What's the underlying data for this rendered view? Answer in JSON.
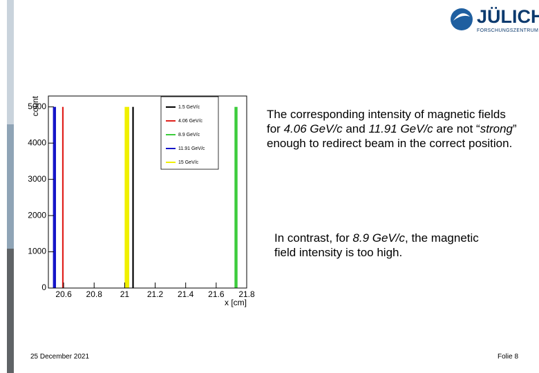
{
  "logo": {
    "name": "JÜLICH",
    "subtitle": "FORSCHUNGSZENTRUM"
  },
  "paragraphs": [
    [
      "The corresponding intensity of magnetic fields for ",
      "4.06 GeV/c",
      " and ",
      "11.91 GeV/c",
      " are not “",
      "strong",
      "” enough to redirect beam in the correct position."
    ],
    [
      "In contrast, for ",
      "8.9 GeV/c",
      ", the magnetic field intensity is too high."
    ]
  ],
  "footer": {
    "date": "25 December 2021",
    "page": "Folie 8"
  },
  "chart_data": {
    "type": "histogram",
    "y_label": "count",
    "x_label": "x [cm]",
    "xlim": [
      20.5,
      21.8
    ],
    "xticks": [
      20.6,
      20.8,
      21,
      21.2,
      21.4,
      21.6,
      21.8
    ],
    "ylim": [
      0,
      5300
    ],
    "yticks": [
      0,
      1000,
      2000,
      3000,
      4000,
      5000
    ],
    "series": [
      {
        "name": "1.5 GeV/c",
        "color": "#000000",
        "bins": [
          21.05,
          21.06
        ],
        "values": [
          5000
        ]
      },
      {
        "name": "4.06 GeV/c",
        "color": "#e0201c",
        "bins": [
          20.59,
          20.6
        ],
        "values": [
          5000
        ]
      },
      {
        "name": "8.9 GeV/c",
        "color": "#3ccc3c",
        "bins": [
          21.72,
          21.74
        ],
        "values": [
          5000
        ]
      },
      {
        "name": "11.91 GeV/c",
        "color": "#1414c8",
        "bins": [
          20.53,
          20.55
        ],
        "values": [
          5000
        ]
      },
      {
        "name": "15 GeV/c",
        "color": "#f0f000",
        "bins": [
          21.0,
          21.03
        ],
        "values": [
          5000
        ]
      }
    ]
  }
}
